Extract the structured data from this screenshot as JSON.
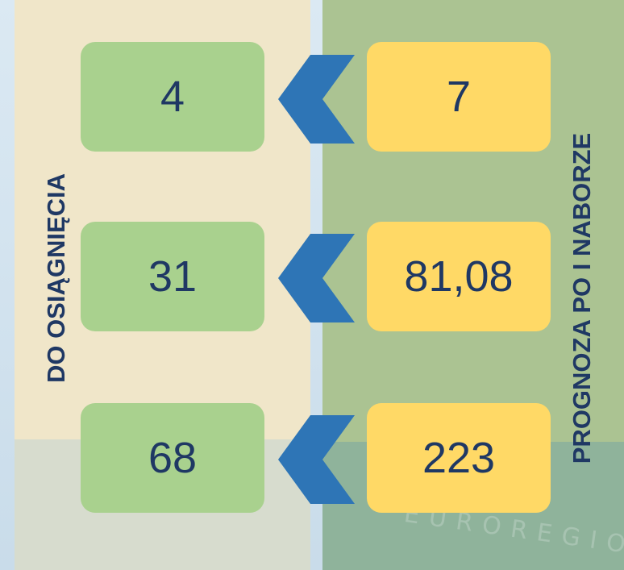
{
  "left_label": "DO OSIĄGNIĘCIA",
  "right_label": "PROGNOZA PO I NABORZE",
  "rows": [
    {
      "target": "4",
      "forecast": "7"
    },
    {
      "target": "31",
      "forecast": "81,08"
    },
    {
      "target": "68",
      "forecast": "223"
    }
  ],
  "watermark": "EUROREGIO"
}
